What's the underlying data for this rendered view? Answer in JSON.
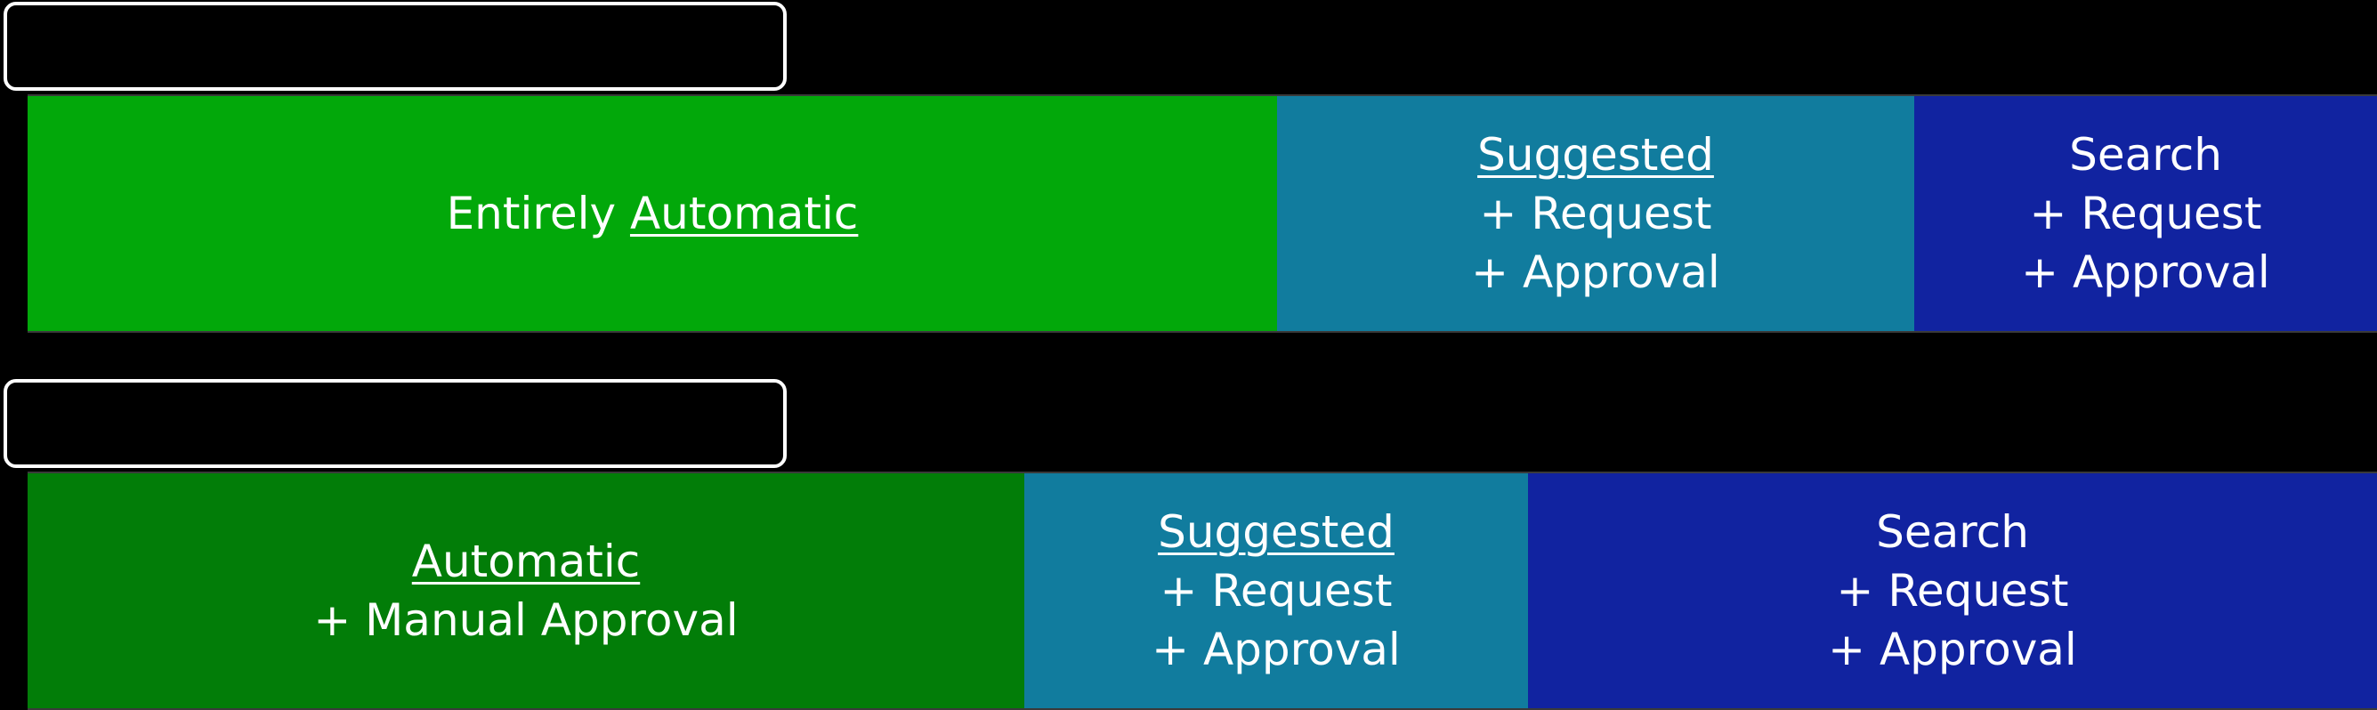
{
  "colors": {
    "background": "#000000",
    "automatic_green": "#02a80a",
    "manual_green": "#027d08",
    "suggested_teal": "#117c9e",
    "search_blue": "#1123a0",
    "text": "#ffffff"
  },
  "row1": {
    "segments": [
      {
        "line1_prefix": "Entirely ",
        "line1_emph": "Automatic"
      },
      {
        "line1": "Suggested",
        "line2": "+ Request",
        "line3": "+ Approval"
      },
      {
        "line1": "Search",
        "line2": "+ Request",
        "line3": "+ Approval"
      }
    ]
  },
  "row2": {
    "segments": [
      {
        "line1": "Automatic",
        "line2": "+ Manual Approval"
      },
      {
        "line1": "Suggested",
        "line2": "+ Request",
        "line3": "+ Approval"
      },
      {
        "line1": "Search",
        "line2": "+ Request",
        "line3": "+ Approval"
      }
    ]
  }
}
